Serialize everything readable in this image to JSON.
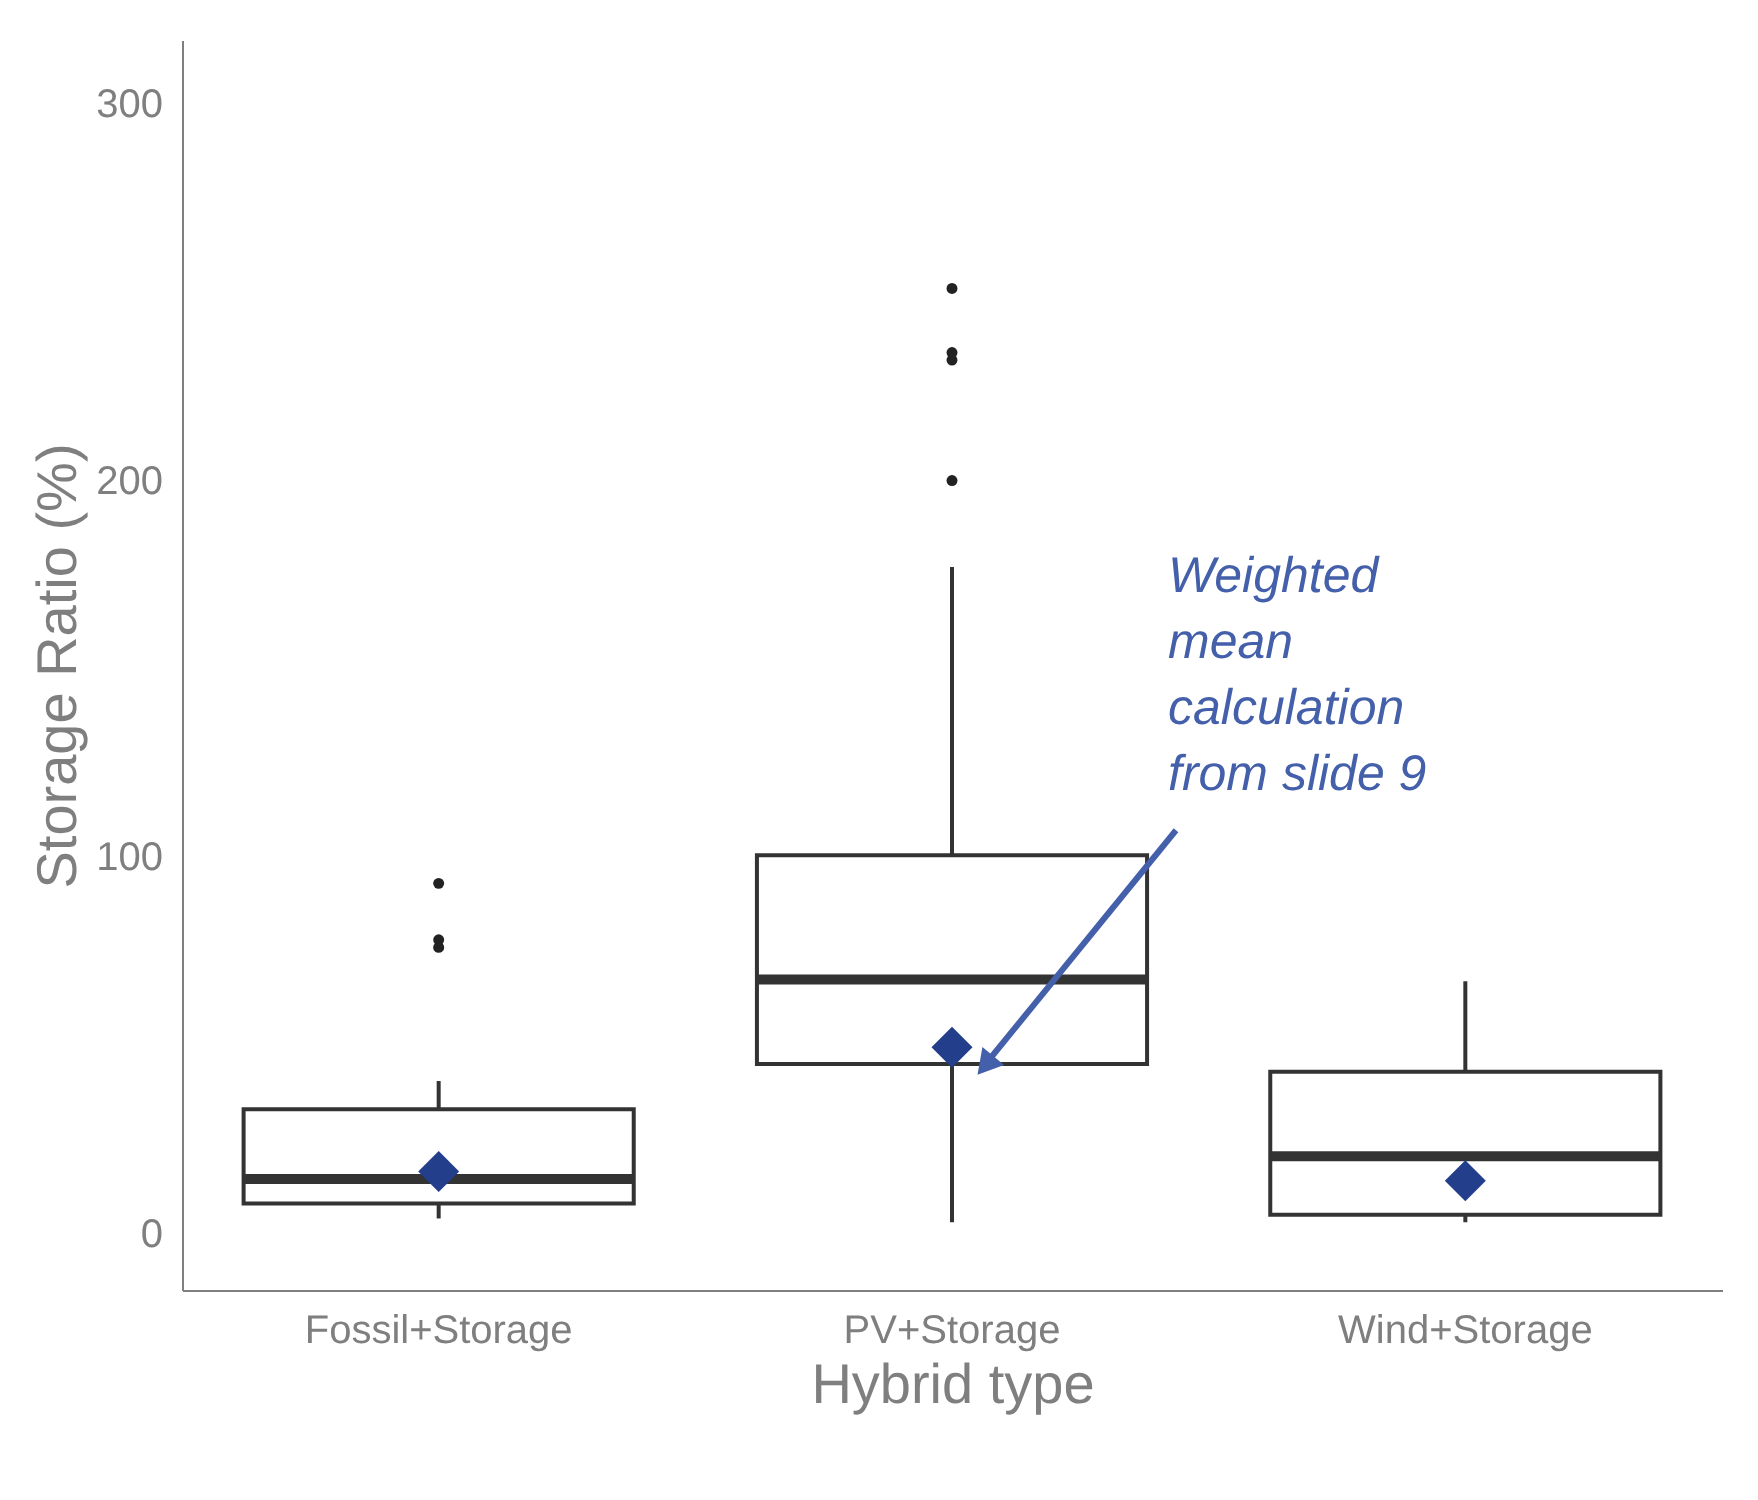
{
  "chart_data": {
    "type": "box",
    "xlabel": "Hybrid type",
    "ylabel": "Storage Ratio (%)",
    "categories": [
      "Fossil+Storage",
      "PV+Storage",
      "Wind+Storage"
    ],
    "boxes": [
      {
        "low": 4,
        "q1": 8,
        "median": 14.5,
        "q3": 33,
        "high": 40.5,
        "mean": 16.5,
        "outliers": [
          93,
          78,
          76
        ]
      },
      {
        "low": 3,
        "q1": 45,
        "median": 67.5,
        "q3": 100.5,
        "high": 177,
        "mean": 49.5,
        "outliers": [
          200,
          232,
          234,
          251
        ]
      },
      {
        "low": 3,
        "q1": 5,
        "median": 20.5,
        "q3": 43,
        "high": 67,
        "mean": 14
      }
    ],
    "ylim": [
      -15,
      317
    ],
    "yticks": [
      0,
      100,
      200,
      300
    ],
    "grid": false,
    "annotations": [
      "Weighted mean calculation from slide 9"
    ]
  }
}
